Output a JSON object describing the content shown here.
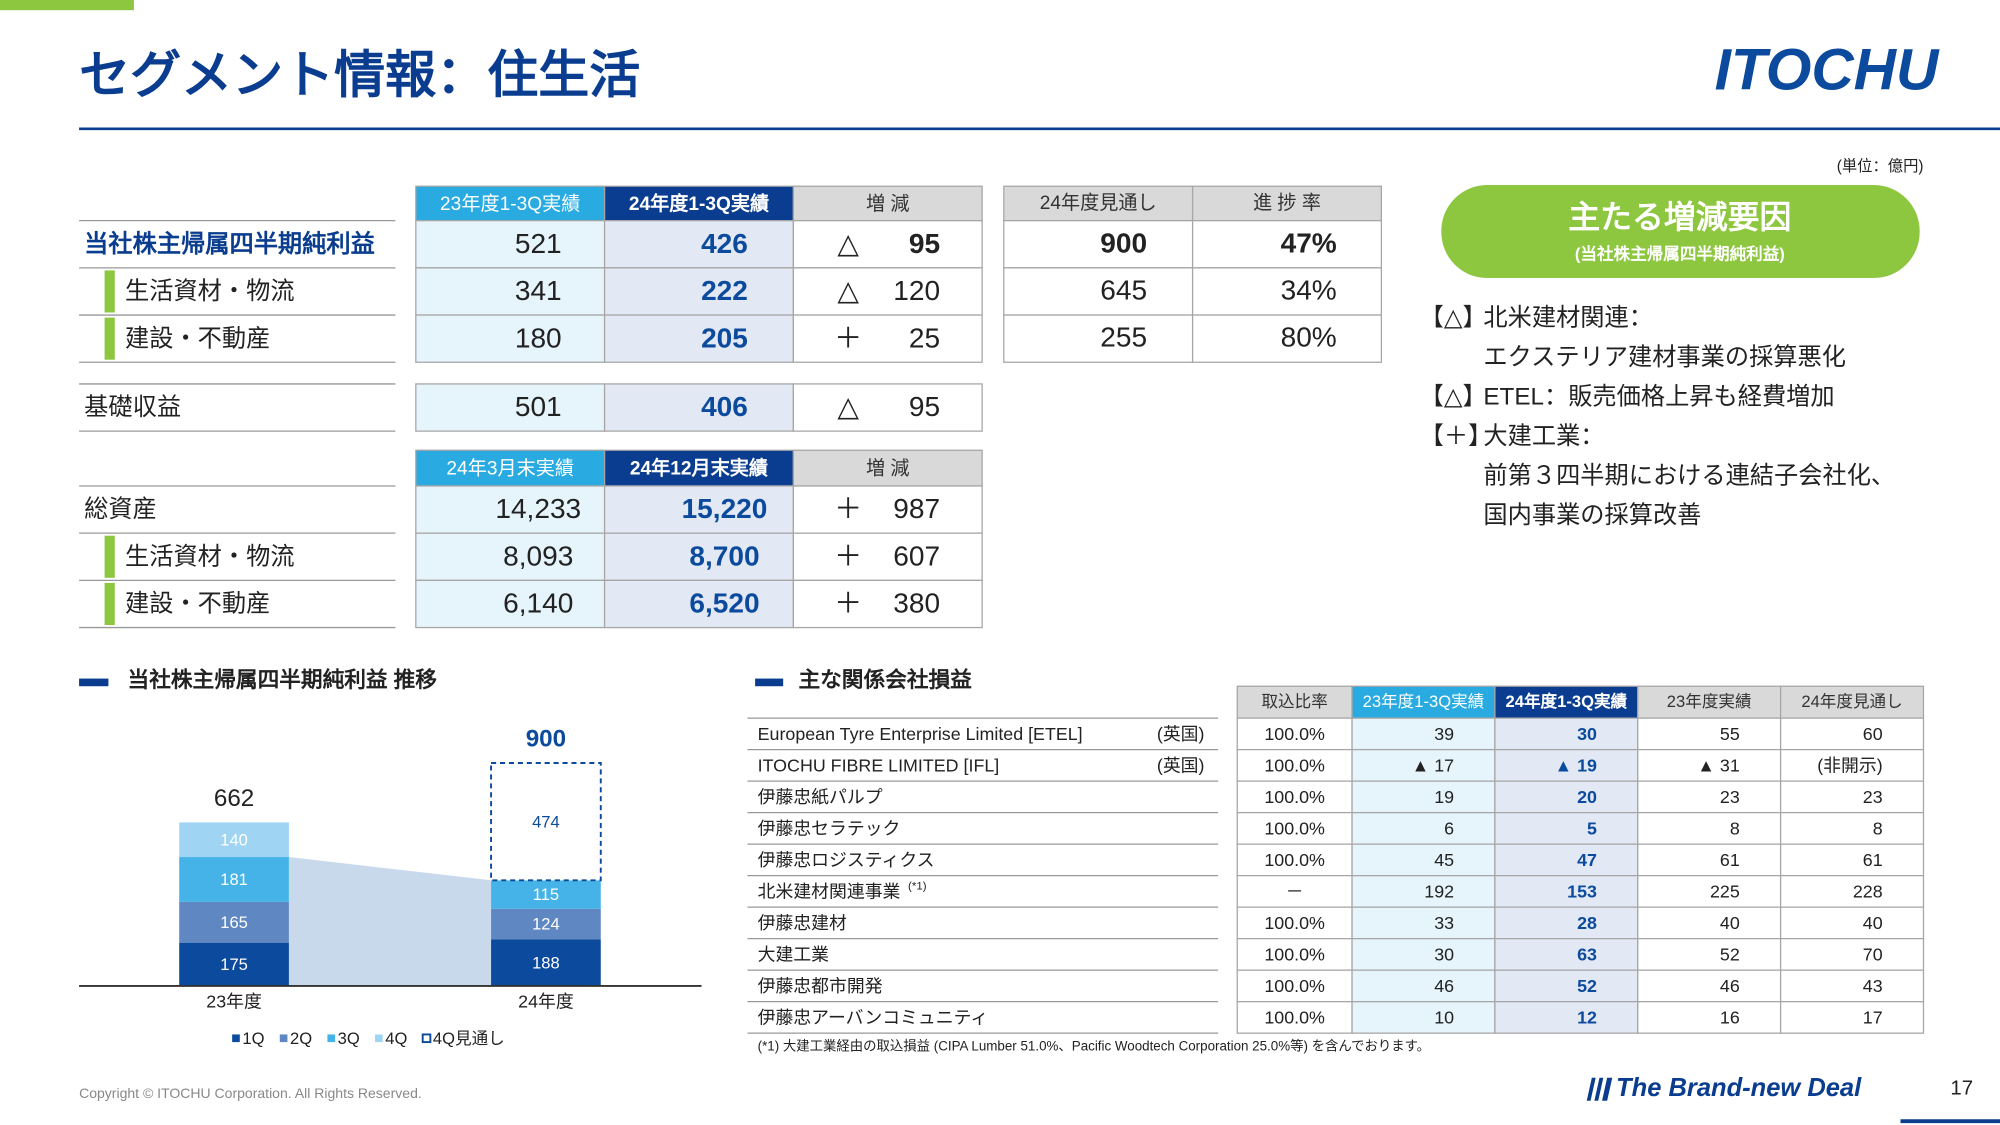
{
  "header": {
    "title": "セグメント情報：住生活",
    "unit": "(単位：億円)",
    "logo": "ITOCHU"
  },
  "profit_table": {
    "columns": [
      "23年度1-3Q実績",
      "24年度1-3Q実績",
      "増 減"
    ],
    "forecast_columns": [
      "24年度見通し",
      "進 捗 率"
    ],
    "rows": [
      {
        "label": "当社株主帰属四半期純利益",
        "values": [
          "521",
          "426"
        ],
        "change": {
          "sign": "△",
          "value": "95"
        },
        "forecast": [
          "900",
          "47%"
        ]
      },
      {
        "label": "生活資材・物流",
        "values": [
          "341",
          "222"
        ],
        "change": {
          "sign": "△",
          "value": "120"
        },
        "forecast": [
          "645",
          "34%"
        ]
      },
      {
        "label": "建設・不動産",
        "values": [
          "180",
          "205"
        ],
        "change": {
          "sign": "＋",
          "value": "25"
        },
        "forecast": [
          "255",
          "80%"
        ]
      }
    ]
  },
  "base_profit": {
    "label": "基礎収益",
    "values": [
      "501",
      "406"
    ],
    "change": {
      "sign": "△",
      "value": "95"
    }
  },
  "assets_table": {
    "columns": [
      "24年3月末実績",
      "24年12月末実績",
      "増 減"
    ],
    "rows": [
      {
        "label": "総資産",
        "values": [
          "14,233",
          "15,220"
        ],
        "change": {
          "sign": "＋",
          "value": "987"
        }
      },
      {
        "label": "生活資材・物流",
        "values": [
          "8,093",
          "8,700"
        ],
        "change": {
          "sign": "＋",
          "value": "607"
        }
      },
      {
        "label": "建設・不動産",
        "values": [
          "6,140",
          "6,520"
        ],
        "change": {
          "sign": "＋",
          "value": "380"
        }
      }
    ]
  },
  "factors": {
    "title": "主たる増減要因",
    "subtitle": "(当社株主帰属四半期純利益)",
    "items": [
      {
        "tag": "【△】",
        "lines": [
          "北米建材関連：",
          "エクステリア建材事業の採算悪化"
        ]
      },
      {
        "tag": "【△】",
        "lines": [
          "ETEL：販売価格上昇も経費増加"
        ]
      },
      {
        "tag": "【＋】",
        "lines": [
          "大建工業：",
          "前第３四半期における連結子会社化、",
          "国内事業の採算改善"
        ]
      }
    ]
  },
  "chart_data": {
    "type": "bar",
    "stacked": true,
    "title": "当社株主帰属四半期純利益 推移",
    "categories": [
      "23年度",
      "24年度"
    ],
    "series": [
      {
        "name": "1Q",
        "color": "#0b4a9c",
        "values": [
          175,
          188
        ]
      },
      {
        "name": "2Q",
        "color": "#5f87c2",
        "values": [
          165,
          124
        ]
      },
      {
        "name": "3Q",
        "color": "#45b3e8",
        "values": [
          181,
          115
        ]
      },
      {
        "name": "4Q",
        "color": "#9fd5f3",
        "values": [
          140,
          null
        ]
      },
      {
        "name": "4Q見通し",
        "color": "#ffffff",
        "border": "#0b4a9c",
        "dashed": true,
        "values": [
          null,
          474
        ]
      }
    ],
    "totals": [
      662,
      900
    ]
  },
  "affiliates": {
    "title": "主な関係会社損益",
    "columns": [
      "取込比率",
      "23年度1-3Q実績",
      "24年度1-3Q実績",
      "23年度実績",
      "24年度見通し"
    ],
    "rows": [
      {
        "name": "European Tyre Enterprise Limited [ETEL]",
        "country": "(英国)",
        "cells": [
          "100.0%",
          "39",
          "30",
          "55",
          "60"
        ]
      },
      {
        "name": "ITOCHU FIBRE LIMITED [IFL]",
        "country": "(英国)",
        "cells": [
          "100.0%",
          "▲ 17",
          "▲ 19",
          "▲ 31",
          "(非開示)"
        ]
      },
      {
        "name": "伊藤忠紙パルプ",
        "cells": [
          "100.0%",
          "19",
          "20",
          "23",
          "23"
        ]
      },
      {
        "name": "伊藤忠セラテック",
        "cells": [
          "100.0%",
          "6",
          "5",
          "8",
          "8"
        ]
      },
      {
        "name": "伊藤忠ロジスティクス",
        "cells": [
          "100.0%",
          "45",
          "47",
          "61",
          "61"
        ]
      },
      {
        "name": "北米建材関連事業",
        "note": "(*1)",
        "cells": [
          "－",
          "192",
          "153",
          "225",
          "228"
        ]
      },
      {
        "name": "伊藤忠建材",
        "cells": [
          "100.0%",
          "33",
          "28",
          "40",
          "40"
        ]
      },
      {
        "name": "大建工業",
        "cells": [
          "100.0%",
          "30",
          "63",
          "52",
          "70"
        ]
      },
      {
        "name": "伊藤忠都市開発",
        "cells": [
          "100.0%",
          "46",
          "52",
          "46",
          "43"
        ]
      },
      {
        "name": "伊藤忠アーバンコミュニティ",
        "cells": [
          "100.0%",
          "10",
          "12",
          "16",
          "17"
        ]
      }
    ],
    "footnote": "(*1) 大建工業経由の取込損益 (CIPA Lumber 51.0%、Pacific Woodtech Corporation 25.0%等) を含んでおります。"
  },
  "footer": {
    "copyright": "Copyright © ITOCHU Corporation. All Rights Reserved.",
    "slogan": "The Brand-new Deal",
    "page": "17"
  }
}
